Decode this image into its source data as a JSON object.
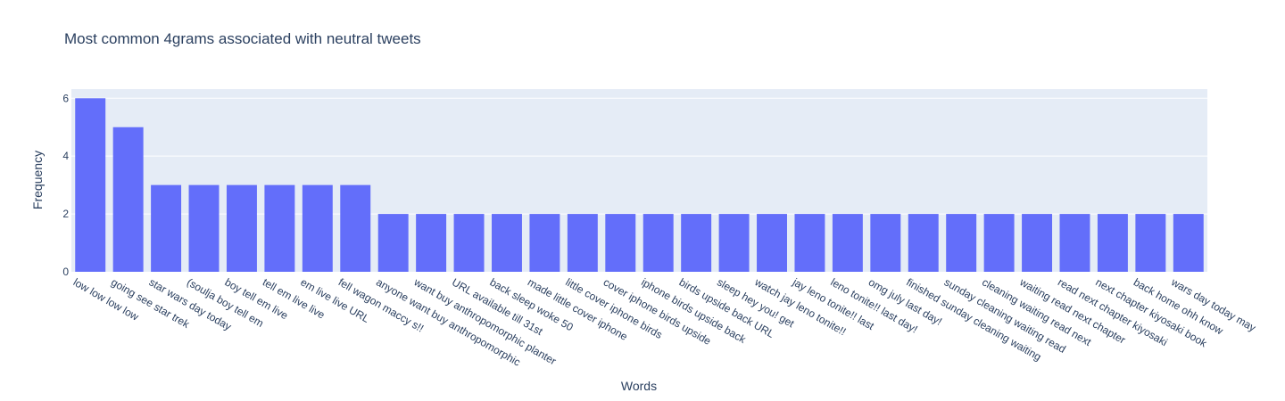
{
  "chart_data": {
    "type": "bar",
    "title": "Most common 4grams associated with neutral tweets",
    "xlabel": "Words",
    "ylabel": "Frequency",
    "ylim": [
      0,
      6.316
    ],
    "yticks": [
      0,
      2,
      4,
      6
    ],
    "grid": true,
    "bar_color": "#636efa",
    "plot_background": "#e5ecf6",
    "categories": [
      "low low low low",
      "going see star trek",
      "star wars day today",
      "(soulja boy tell em",
      "boy tell em live",
      "tell em live live",
      "em live live URL",
      "fell wagon maccy s!!",
      "anyone want buy anthropomorphic",
      "want buy anthropomorphic planter",
      "URL available till 31st",
      "back sleep woke 50",
      "made little cover iphone",
      "little cover iphone birds",
      "cover iphone birds upside",
      "iphone birds upside back",
      "birds upside back URL",
      "sleep hey you! get",
      "watch jay leno tonite!!",
      "jay leno tonite!! last",
      "leno tonite!! last day!",
      "omg july last day!",
      "finished sunday cleaning waiting",
      "sunday cleaning waiting read",
      "cleaning waiting read next",
      "waiting read next chapter",
      "read next chapter kiyosaki",
      "next chapter kiyosaki book",
      "back home ohh know",
      "wars day today may"
    ],
    "values": [
      6,
      5,
      3,
      3,
      3,
      3,
      3,
      3,
      2,
      2,
      2,
      2,
      2,
      2,
      2,
      2,
      2,
      2,
      2,
      2,
      2,
      2,
      2,
      2,
      2,
      2,
      2,
      2,
      2,
      2
    ]
  }
}
